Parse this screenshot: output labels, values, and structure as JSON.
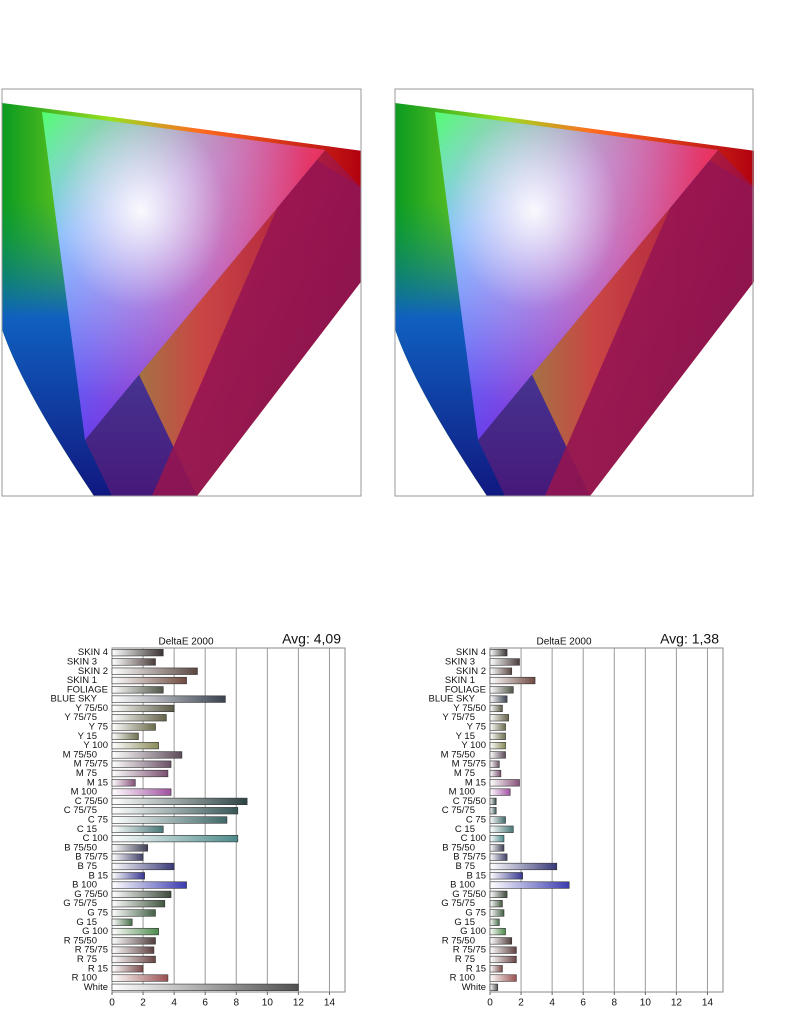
{
  "chart_data": [
    {
      "type": "bar",
      "orientation": "horizontal",
      "title": "DeltaE 2000",
      "annotation": "Avg: 4,09",
      "categories": [
        "SKIN 4",
        "SKIN 3",
        "SKIN 2",
        "SKIN 1",
        "FOLIAGE",
        "BLUE SKY",
        "Y 75/50",
        "Y 75/75",
        "Y 75",
        "Y 15",
        "Y 100",
        "M 75/50",
        "M 75/75",
        "M 75",
        "M 15",
        "M 100",
        "C 75/50",
        "C 75/75",
        "C 75",
        "C 15",
        "C 100",
        "B 75/50",
        "B 75/75",
        "B 75",
        "B 15",
        "B 100",
        "G 75/50",
        "G 75/75",
        "G 75",
        "G 15",
        "G 100",
        "R 75/50",
        "R 75/75",
        "R 75",
        "R 15",
        "R 100",
        "White"
      ],
      "values": [
        3.3,
        2.8,
        5.5,
        4.8,
        3.3,
        7.3,
        4.0,
        3.5,
        2.8,
        1.7,
        3.0,
        4.5,
        3.8,
        3.6,
        1.5,
        3.8,
        8.7,
        8.1,
        7.4,
        3.3,
        8.1,
        2.3,
        2.0,
        4.0,
        2.1,
        4.8,
        3.8,
        3.4,
        2.8,
        1.3,
        3.0,
        2.8,
        2.7,
        2.8,
        2.0,
        3.6,
        12.0
      ],
      "colors": [
        "#3a3232",
        "#4a3c3a",
        "#5a4640",
        "#6e4a40",
        "#4e5446",
        "#3a4250",
        "#5c5a44",
        "#646248",
        "#6a6a4a",
        "#707050",
        "#8a8a5a",
        "#5c4a58",
        "#6a5066",
        "#7a5070",
        "#86507a",
        "#a050a0",
        "#2e4444",
        "#385656",
        "#406868",
        "#487676",
        "#4c8a8a",
        "#3e3e56",
        "#40406a",
        "#383878",
        "#363690",
        "#3a3ab0",
        "#3e4a3c",
        "#40563e",
        "#426044",
        "#466e48",
        "#4c8a4c",
        "#503c3c",
        "#5e4040",
        "#6a4444",
        "#7a4848",
        "#9a5050",
        "#505050"
      ],
      "xlim": [
        0,
        15
      ],
      "xticks": [
        0,
        2,
        4,
        6,
        8,
        10,
        12,
        14
      ],
      "grid": true
    },
    {
      "type": "bar",
      "orientation": "horizontal",
      "title": "DeltaE 2000",
      "annotation": "Avg: 1,38",
      "categories": [
        "SKIN 4",
        "SKIN 3",
        "SKIN 2",
        "SKIN 1",
        "FOLIAGE",
        "BLUE SKY",
        "Y 75/50",
        "Y 75/75",
        "Y 75",
        "Y 15",
        "Y 100",
        "M 75/50",
        "M 75/75",
        "M 75",
        "M 15",
        "M 100",
        "C 75/50",
        "C 75/75",
        "C 75",
        "C 15",
        "C 100",
        "B 75/50",
        "B 75/75",
        "B 75",
        "B 15",
        "B 100",
        "G 75/50",
        "G 75/75",
        "G 75",
        "G 15",
        "G 100",
        "R 75/50",
        "R 75/75",
        "R 75",
        "R 15",
        "R 100",
        "White"
      ],
      "values": [
        1.1,
        1.9,
        1.4,
        2.9,
        1.5,
        1.1,
        0.8,
        1.2,
        1.0,
        1.0,
        1.0,
        1.0,
        0.6,
        0.7,
        1.9,
        1.3,
        0.4,
        0.4,
        1.0,
        1.5,
        0.9,
        0.9,
        1.1,
        4.3,
        2.1,
        5.1,
        1.1,
        0.8,
        0.9,
        0.6,
        1.0,
        1.4,
        1.7,
        1.7,
        0.8,
        1.7,
        0.5
      ],
      "colors": [
        "#3a3232",
        "#4a3c3a",
        "#5a4640",
        "#6e4a40",
        "#4e5446",
        "#3a4250",
        "#5c5a44",
        "#646248",
        "#6a6a4a",
        "#707050",
        "#8a8a5a",
        "#5c4a58",
        "#6a5066",
        "#7a5070",
        "#86507a",
        "#a050a0",
        "#2e4444",
        "#385656",
        "#406868",
        "#487676",
        "#4c8a8a",
        "#3e3e56",
        "#40406a",
        "#383878",
        "#363690",
        "#3a3ab0",
        "#3e4a3c",
        "#40563e",
        "#426044",
        "#466e48",
        "#4c8a4c",
        "#503c3c",
        "#5e4040",
        "#6a4444",
        "#7a4848",
        "#9a5050",
        "#505050"
      ],
      "xlim": [
        0,
        15
      ],
      "xticks": [
        0,
        2,
        4,
        6,
        8,
        10,
        12,
        14
      ],
      "grid": true
    }
  ]
}
